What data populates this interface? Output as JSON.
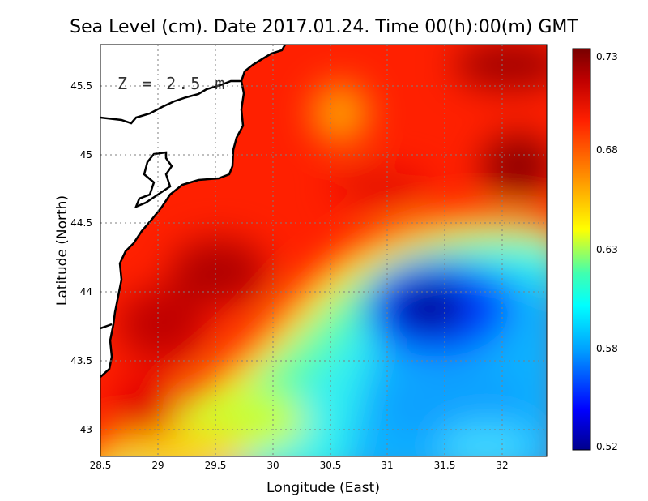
{
  "title": "Sea Level (cm). Date 2017.01.24. Time 00(h):00(m) GMT",
  "annotation": "Z = 2.5 m",
  "axes": {
    "xlabel": "Longitude (East)",
    "ylabel": "Latitude (North)",
    "xlim": [
      28.5,
      32.4
    ],
    "ylim": [
      42.8,
      45.8
    ],
    "xticks": [
      "28.5",
      "29",
      "29.5",
      "30",
      "30.5",
      "31",
      "31.5",
      "32"
    ],
    "yticks": [
      "43",
      "43.5",
      "44",
      "44.5",
      "45",
      "45.5"
    ],
    "grid": true
  },
  "colorbar": {
    "range": [
      0.52,
      0.73
    ],
    "tick_labels": [
      "0.73",
      "0.68",
      "0.63",
      "0.58",
      "0.52"
    ],
    "stops": [
      "#00008c",
      "#0000ff",
      "#00a0ff",
      "#00ffff",
      "#40ffb0",
      "#ffff00",
      "#ff9000",
      "#ff2000",
      "#c00000",
      "#780000"
    ]
  },
  "colors": {
    "land": "#ffffff",
    "coast": "#000000",
    "grid": "#7f7f7f"
  }
}
